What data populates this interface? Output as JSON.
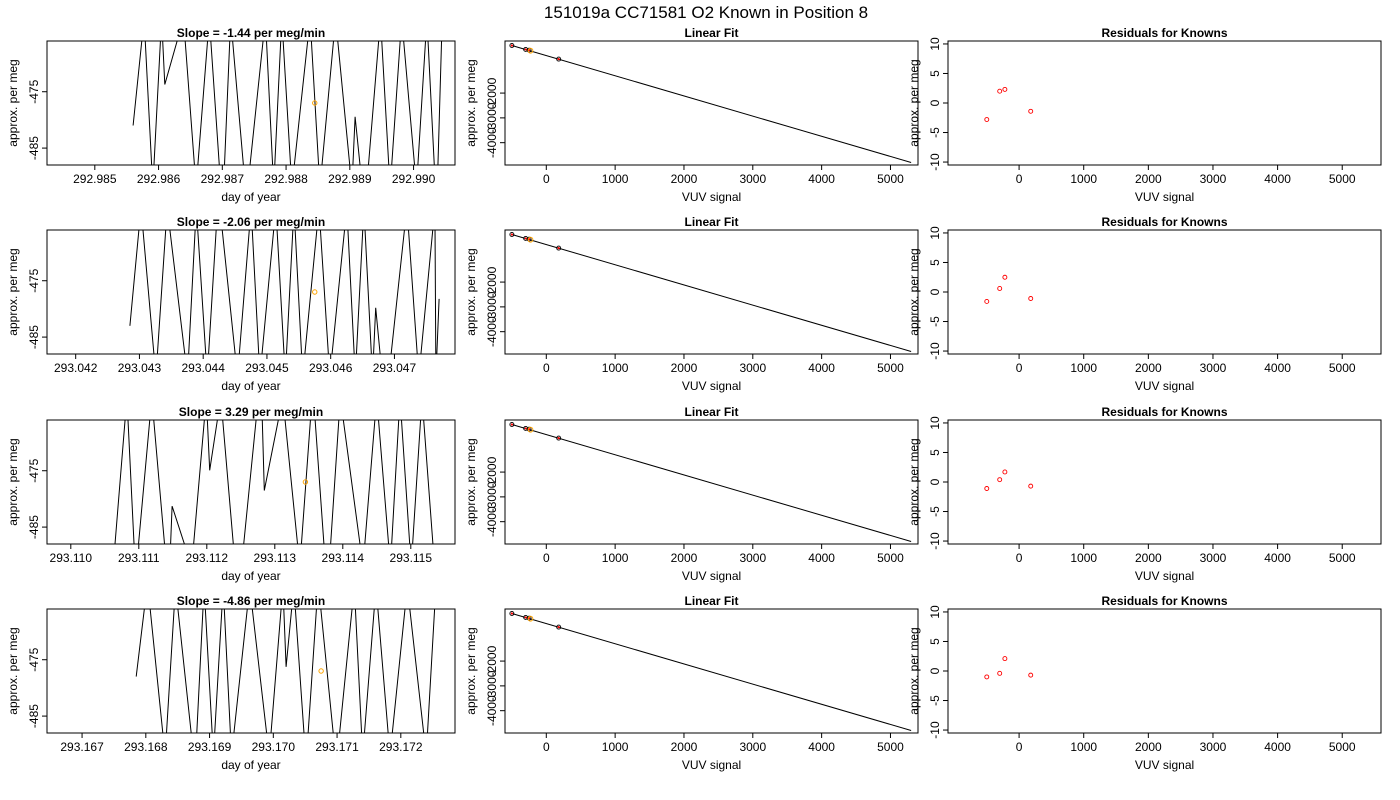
{
  "figure_title": "151019a      CC71581    O2 Known in Position  8",
  "colors": {
    "trace": "#000000",
    "known_point": "#ff0000",
    "highlight_point": "#ffa500",
    "fit_line": "#000000"
  },
  "chart_data": [
    {
      "type": "line",
      "row": 0,
      "col": 0,
      "title": "Slope =  -1.44  per meg/min",
      "xlabel": "day of year",
      "ylabel": "approx. per meg",
      "xlim": [
        292.98425,
        292.99065
      ],
      "ylim": [
        -488,
        -466
      ],
      "xticks": [
        "292.985",
        "292.986",
        "292.987",
        "292.988",
        "292.989",
        "292.990"
      ],
      "xtick_values": [
        292.985,
        292.986,
        292.987,
        292.988,
        292.989,
        292.99
      ],
      "yticks": [
        "-475",
        "-485"
      ],
      "ytick_values": [
        -475,
        -485
      ],
      "trace": {
        "start": 292.9856,
        "end": 292.99045,
        "lo": -488,
        "hi": -466,
        "start_lo": -481,
        "seed": 11
      },
      "marker": {
        "x": 292.98845,
        "y": -477
      }
    },
    {
      "type": "scatter",
      "row": 0,
      "col": 1,
      "title": "Linear Fit",
      "xlabel": "VUV signal",
      "ylabel": "approx. per meg",
      "xlim": [
        -600,
        5400
      ],
      "ylim": [
        -4900,
        100
      ],
      "xticks": [
        "0",
        "1000",
        "2000",
        "3000",
        "4000",
        "5000"
      ],
      "xtick_values": [
        0,
        1000,
        2000,
        3000,
        4000,
        5000
      ],
      "yticks": [
        "-2000",
        "-3000",
        "-4000"
      ],
      "ytick_values": [
        -2000,
        -3000,
        -4000
      ],
      "points": [
        {
          "x": -500,
          "y": -80
        },
        {
          "x": -300,
          "y": -240
        },
        {
          "x": -250,
          "y": -270
        },
        {
          "x": 180,
          "y": -630
        }
      ],
      "highlight": {
        "x": -230,
        "y": -290
      },
      "fit_line": {
        "x0": -500,
        "y0": -80,
        "x1": 5300,
        "y1": -4800
      }
    },
    {
      "type": "scatter",
      "row": 0,
      "col": 2,
      "title": "Residuals for Knowns",
      "xlabel": "VUV signal",
      "ylabel": "approx. per meg",
      "xlim": [
        -1100,
        5600
      ],
      "ylim": [
        -10.5,
        10.5
      ],
      "xticks": [
        "0",
        "1000",
        "2000",
        "3000",
        "4000",
        "5000"
      ],
      "xtick_values": [
        0,
        1000,
        2000,
        3000,
        4000,
        5000
      ],
      "yticks": [
        "10",
        "5",
        "0",
        "-5",
        "-10"
      ],
      "ytick_values": [
        10,
        5,
        0,
        -5,
        -10
      ],
      "points": [
        {
          "x": -500,
          "y": -2.8
        },
        {
          "x": -300,
          "y": 2
        },
        {
          "x": -220,
          "y": 2.3
        },
        {
          "x": 180,
          "y": -1.4
        }
      ]
    },
    {
      "type": "line",
      "row": 1,
      "col": 0,
      "title": "Slope =  -2.06  per meg/min",
      "xlabel": "day of year",
      "ylabel": "approx. per meg",
      "xlim": [
        293.04155,
        293.04795
      ],
      "ylim": [
        -488,
        -466
      ],
      "xticks": [
        "293.042",
        "293.043",
        "293.044",
        "293.045",
        "293.046",
        "293.047"
      ],
      "xtick_values": [
        293.042,
        293.043,
        293.044,
        293.045,
        293.046,
        293.047
      ],
      "yticks": [
        "-475",
        "-485"
      ],
      "ytick_values": [
        -475,
        -485
      ],
      "trace": {
        "start": 293.04285,
        "end": 293.04765,
        "lo": -488,
        "hi": -466,
        "start_lo": -483,
        "seed": 23
      },
      "marker": {
        "x": 293.04575,
        "y": -477
      }
    },
    {
      "type": "scatter",
      "row": 1,
      "col": 1,
      "title": "Linear Fit",
      "xlabel": "VUV signal",
      "ylabel": "approx. per meg",
      "xlim": [
        -600,
        5400
      ],
      "ylim": [
        -4900,
        100
      ],
      "xticks": [
        "0",
        "1000",
        "2000",
        "3000",
        "4000",
        "5000"
      ],
      "xtick_values": [
        0,
        1000,
        2000,
        3000,
        4000,
        5000
      ],
      "yticks": [
        "-2000",
        "-3000",
        "-4000"
      ],
      "ytick_values": [
        -2000,
        -3000,
        -4000
      ],
      "points": [
        {
          "x": -500,
          "y": -80
        },
        {
          "x": -300,
          "y": -240
        },
        {
          "x": -250,
          "y": -270
        },
        {
          "x": 180,
          "y": -630
        }
      ],
      "highlight": {
        "x": -230,
        "y": -290
      },
      "fit_line": {
        "x0": -500,
        "y0": -80,
        "x1": 5300,
        "y1": -4800
      }
    },
    {
      "type": "scatter",
      "row": 1,
      "col": 2,
      "title": "Residuals for Knowns",
      "xlabel": "VUV signal",
      "ylabel": "approx. per meg",
      "xlim": [
        -1100,
        5600
      ],
      "ylim": [
        -10.5,
        10.5
      ],
      "xticks": [
        "0",
        "1000",
        "2000",
        "3000",
        "4000",
        "5000"
      ],
      "xtick_values": [
        0,
        1000,
        2000,
        3000,
        4000,
        5000
      ],
      "yticks": [
        "10",
        "5",
        "0",
        "-5",
        "-10"
      ],
      "ytick_values": [
        10,
        5,
        0,
        -5,
        -10
      ],
      "points": [
        {
          "x": -500,
          "y": -1.6
        },
        {
          "x": -300,
          "y": 0.6
        },
        {
          "x": -220,
          "y": 2.5
        },
        {
          "x": 180,
          "y": -1.1
        }
      ]
    },
    {
      "type": "line",
      "row": 2,
      "col": 0,
      "title": "Slope =  3.29  per meg/min",
      "xlabel": "day of year",
      "ylabel": "approx. per meg",
      "xlim": [
        293.10965,
        293.11565
      ],
      "ylim": [
        -488,
        -466
      ],
      "xticks": [
        "293.110",
        "293.111",
        "293.112",
        "293.113",
        "293.114",
        "293.115"
      ],
      "xtick_values": [
        293.11,
        293.111,
        293.112,
        293.113,
        293.114,
        293.115
      ],
      "yticks": [
        "-475",
        "-485"
      ],
      "ytick_values": [
        -475,
        -485
      ],
      "trace": {
        "start": 293.11065,
        "end": 293.11535,
        "lo": -488,
        "hi": -466,
        "start_lo": -488,
        "seed": 37
      },
      "marker": {
        "x": 293.11345,
        "y": -477
      }
    },
    {
      "type": "scatter",
      "row": 2,
      "col": 1,
      "title": "Linear Fit",
      "xlabel": "VUV signal",
      "ylabel": "approx. per meg",
      "xlim": [
        -600,
        5400
      ],
      "ylim": [
        -4900,
        100
      ],
      "xticks": [
        "0",
        "1000",
        "2000",
        "3000",
        "4000",
        "5000"
      ],
      "xtick_values": [
        0,
        1000,
        2000,
        3000,
        4000,
        5000
      ],
      "yticks": [
        "-2000",
        "-3000",
        "-4000"
      ],
      "ytick_values": [
        -2000,
        -3000,
        -4000
      ],
      "points": [
        {
          "x": -500,
          "y": -80
        },
        {
          "x": -300,
          "y": -240
        },
        {
          "x": -250,
          "y": -270
        },
        {
          "x": 180,
          "y": -630
        }
      ],
      "highlight": {
        "x": -230,
        "y": -290
      },
      "fit_line": {
        "x0": -500,
        "y0": -80,
        "x1": 5300,
        "y1": -4800
      }
    },
    {
      "type": "scatter",
      "row": 2,
      "col": 2,
      "title": "Residuals for Knowns",
      "xlabel": "VUV signal",
      "ylabel": "approx. per meg",
      "xlim": [
        -1100,
        5600
      ],
      "ylim": [
        -10.5,
        10.5
      ],
      "xticks": [
        "0",
        "1000",
        "2000",
        "3000",
        "4000",
        "5000"
      ],
      "xtick_values": [
        0,
        1000,
        2000,
        3000,
        4000,
        5000
      ],
      "yticks": [
        "10",
        "5",
        "0",
        "-5",
        "-10"
      ],
      "ytick_values": [
        10,
        5,
        0,
        -5,
        -10
      ],
      "points": [
        {
          "x": -500,
          "y": -1.1
        },
        {
          "x": -300,
          "y": 0.4
        },
        {
          "x": -220,
          "y": 1.7
        },
        {
          "x": 180,
          "y": -0.7
        }
      ]
    },
    {
      "type": "line",
      "row": 3,
      "col": 0,
      "title": "Slope =  -4.86  per meg/min",
      "xlabel": "day of year",
      "ylabel": "approx. per meg",
      "xlim": [
        293.16645,
        293.17285
      ],
      "ylim": [
        -488,
        -466
      ],
      "xticks": [
        "293.167",
        "293.168",
        "293.169",
        "293.170",
        "293.171",
        "293.172"
      ],
      "xtick_values": [
        293.167,
        293.168,
        293.169,
        293.17,
        293.171,
        293.172
      ],
      "yticks": [
        "-475",
        "-485"
      ],
      "ytick_values": [
        -475,
        -485
      ],
      "trace": {
        "start": 293.16785,
        "end": 293.17255,
        "lo": -488,
        "hi": -466,
        "start_lo": -478,
        "seed": 53
      },
      "marker": {
        "x": 293.17075,
        "y": -477
      }
    },
    {
      "type": "scatter",
      "row": 3,
      "col": 1,
      "title": "Linear Fit",
      "xlabel": "VUV signal",
      "ylabel": "approx. per meg",
      "xlim": [
        -600,
        5400
      ],
      "ylim": [
        -4900,
        100
      ],
      "xticks": [
        "0",
        "1000",
        "2000",
        "3000",
        "4000",
        "5000"
      ],
      "xtick_values": [
        0,
        1000,
        2000,
        3000,
        4000,
        5000
      ],
      "yticks": [
        "-2000",
        "-3000",
        "-4000"
      ],
      "ytick_values": [
        -2000,
        -3000,
        -4000
      ],
      "points": [
        {
          "x": -500,
          "y": -80
        },
        {
          "x": -300,
          "y": -240
        },
        {
          "x": -250,
          "y": -270
        },
        {
          "x": 180,
          "y": -630
        }
      ],
      "highlight": {
        "x": -230,
        "y": -290
      },
      "fit_line": {
        "x0": -500,
        "y0": -80,
        "x1": 5300,
        "y1": -4800
      }
    },
    {
      "type": "scatter",
      "row": 3,
      "col": 2,
      "title": "Residuals for Knowns",
      "xlabel": "VUV signal",
      "ylabel": "approx. per meg",
      "xlim": [
        -1100,
        5600
      ],
      "ylim": [
        -10.5,
        10.5
      ],
      "xticks": [
        "0",
        "1000",
        "2000",
        "3000",
        "4000",
        "5000"
      ],
      "xtick_values": [
        0,
        1000,
        2000,
        3000,
        4000,
        5000
      ],
      "yticks": [
        "10",
        "5",
        "0",
        "-5",
        "-10"
      ],
      "ytick_values": [
        10,
        5,
        0,
        -5,
        -10
      ],
      "points": [
        {
          "x": -500,
          "y": -1
        },
        {
          "x": -300,
          "y": -0.4
        },
        {
          "x": -220,
          "y": 2.1
        },
        {
          "x": 180,
          "y": -0.7
        }
      ]
    }
  ]
}
